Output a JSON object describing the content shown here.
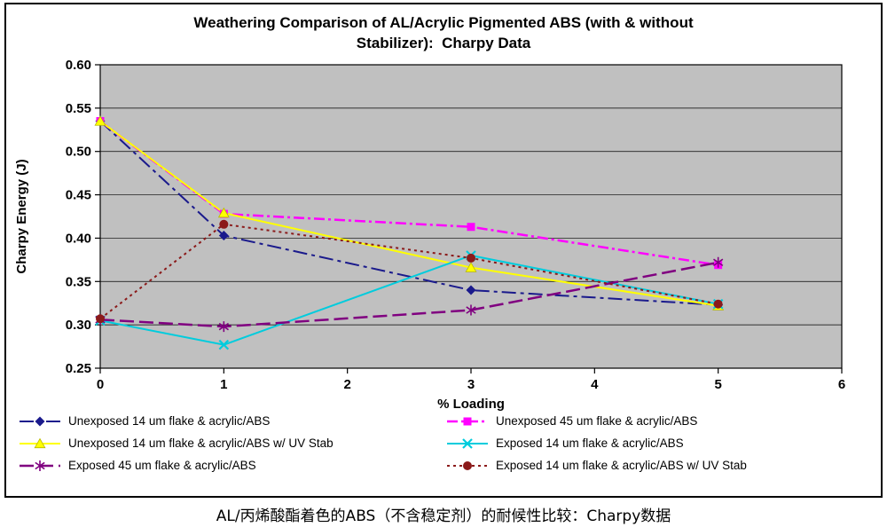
{
  "caption": "AL/丙烯酸酯着色的ABS（不含稳定剂）的耐候性比较：Charpy数据",
  "chart_data": {
    "type": "line",
    "title": "Weathering Comparison of AL/Acrylic Pigmented ABS (with & without\nStabilizer):  Charpy Data",
    "xlabel": "% Loading",
    "ylabel": "Charpy Energy (J)",
    "xlim": [
      0,
      6
    ],
    "ylim": [
      0.25,
      0.6
    ],
    "x_ticks": [
      0,
      1,
      2,
      3,
      4,
      5,
      6
    ],
    "y_ticks": [
      0.25,
      0.3,
      0.35,
      0.4,
      0.45,
      0.5,
      0.55,
      0.6
    ],
    "grid": "horizontal",
    "plot_background": "#C0C0C0",
    "legend_position": "bottom",
    "x": [
      0,
      1,
      3,
      5
    ],
    "series": [
      {
        "name": "Unexposed 14 um flake & acrylic/ABS",
        "values": [
          0.535,
          0.403,
          0.34,
          0.323
        ],
        "color": "#1A1A8C",
        "marker": "diamond",
        "dash": "16 5 4 5",
        "width": 2
      },
      {
        "name": "Unexposed 45 um flake & acrylic/ABS",
        "values": [
          0.535,
          0.428,
          0.413,
          0.369
        ],
        "color": "#FF00FF",
        "marker": "square",
        "dash": "12 4 3 4",
        "width": 2.5
      },
      {
        "name": "Unexposed 14 um flake & acrylic/ABS w/ UV Stab",
        "values": [
          0.535,
          0.429,
          0.366,
          0.322
        ],
        "color": "#FFFF00",
        "marker": "triangle",
        "dash": "",
        "width": 2
      },
      {
        "name": "Exposed 14 um flake & acrylic/ABS",
        "values": [
          0.305,
          0.277,
          0.38,
          0.324
        ],
        "color": "#00CCDD",
        "marker": "x",
        "dash": "",
        "width": 2
      },
      {
        "name": "Exposed 45 um flake & acrylic/ABS",
        "values": [
          0.306,
          0.298,
          0.317,
          0.372
        ],
        "color": "#800080",
        "marker": "asterisk",
        "dash": "16 6",
        "width": 2.5
      },
      {
        "name": "Exposed 14 um flake & acrylic/ABS w/ UV Stab",
        "values": [
          0.307,
          0.416,
          0.377,
          0.324
        ],
        "color": "#8B1A1A",
        "marker": "circle",
        "dash": "3 4",
        "width": 2
      }
    ]
  }
}
